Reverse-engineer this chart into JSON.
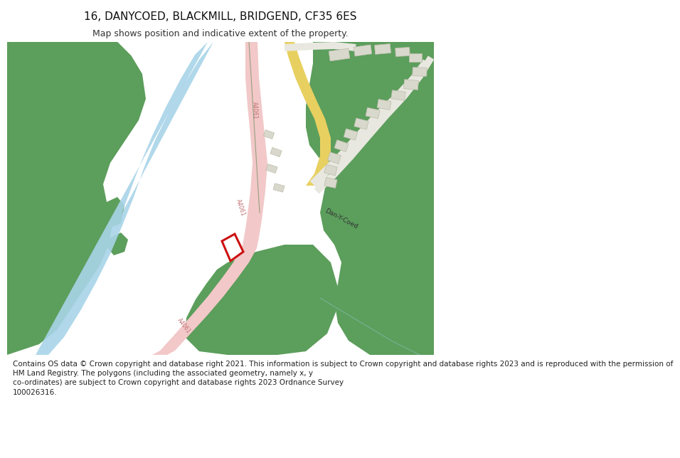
{
  "title": "16, DANYCOED, BLACKMILL, BRIDGEND, CF35 6ES",
  "subtitle": "Map shows position and indicative extent of the property.",
  "footer_lines": [
    "Contains OS data © Crown copyright and database right 2021. This information is subject to Crown copyright and database rights 2023 and is reproduced with the permission of",
    "HM Land Registry. The polygons (including the associated geometry, namely x, y",
    "co-ordinates) are subject to Crown copyright and database rights 2023 Ordnance Survey",
    "100026316."
  ],
  "bg_color": "#ffffff",
  "map_bg": "#f0ede5",
  "green_color": "#5c9e5c",
  "road_color": "#f2c8c8",
  "river_color": "#a8d4e8",
  "yellow_road_color": "#e8d060",
  "plot_outline_color": "#cc1111",
  "building_color": "#d8d8cc",
  "building_outline": "#bbbbaa",
  "road_label_color": "#c07070",
  "label_color": "#333333",
  "title_fontsize": 11,
  "subtitle_fontsize": 9,
  "footer_fontsize": 7.5
}
